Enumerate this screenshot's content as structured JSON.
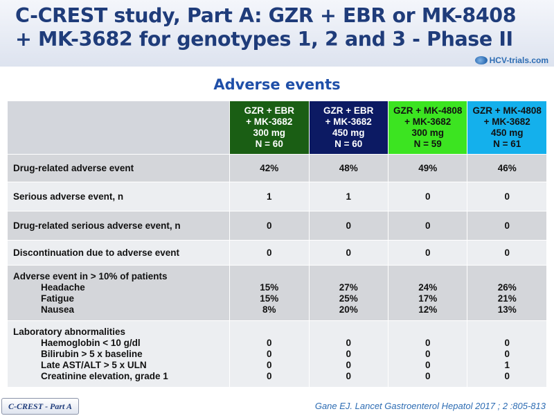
{
  "title": {
    "line1": "C-CREST study, Part A: GZR + EBR or MK-8408",
    "line2": "+ MK-3682 for genotypes 1, 2 and 3 - Phase II"
  },
  "brand": "HCV-trials.com",
  "subtitle": "Adverse events",
  "colors": {
    "arm1": "#1a5e14",
    "arm2": "#0c1a63",
    "arm3": "#3ce421",
    "arm4": "#14b0ec",
    "title": "#1f3c7a"
  },
  "arms": [
    {
      "lines": [
        "GZR + EBR",
        "+ MK-3682",
        "300 mg",
        "N = 60"
      ]
    },
    {
      "lines": [
        "GZR + EBR",
        "+ MK-3682",
        "450 mg",
        "N = 60"
      ]
    },
    {
      "lines": [
        "GZR + MK-4808",
        "+ MK-3682",
        "300 mg",
        "N = 59"
      ]
    },
    {
      "lines": [
        "GZR + MK-4808",
        "+ MK-3682",
        "450 mg",
        "N = 61"
      ]
    }
  ],
  "rows": [
    {
      "label": "Drug-related adverse event",
      "values": [
        "42%",
        "48%",
        "49%",
        "46%"
      ]
    },
    {
      "label": "Serious adverse event, n",
      "values": [
        "1",
        "1",
        "0",
        "0"
      ]
    },
    {
      "label": "Drug-related serious adverse event, n",
      "values": [
        "0",
        "0",
        "0",
        "0"
      ]
    },
    {
      "label": "Discontinuation due to adverse event",
      "values": [
        "0",
        "0",
        "0",
        "0"
      ]
    }
  ],
  "ae10": {
    "label": "Adverse event in > 10% of patients",
    "items": [
      {
        "label": "Headache",
        "values": [
          "15%",
          "27%",
          "24%",
          "26%"
        ]
      },
      {
        "label": "Fatigue",
        "values": [
          "15%",
          "25%",
          "17%",
          "21%"
        ]
      },
      {
        "label": "Nausea",
        "values": [
          "8%",
          "20%",
          "12%",
          "13%"
        ]
      }
    ]
  },
  "lab": {
    "label": "Laboratory abnormalities",
    "items": [
      {
        "label": "Haemoglobin < 10 g/dl",
        "values": [
          "0",
          "0",
          "0",
          "0"
        ]
      },
      {
        "label": "Bilirubin > 5 x baseline",
        "values": [
          "0",
          "0",
          "0",
          "0"
        ]
      },
      {
        "label": "Late AST/ALT > 5 x ULN",
        "values": [
          "0",
          "0",
          "0",
          "1"
        ]
      },
      {
        "label": "Creatinine elevation, grade 1",
        "values": [
          "0",
          "0",
          "0",
          "0"
        ]
      }
    ]
  },
  "footer": {
    "tag": "C-CREST - Part A",
    "citation": "Gane EJ. Lancet Gastroenterol Hepatol 2017 ; 2 :805-813"
  }
}
